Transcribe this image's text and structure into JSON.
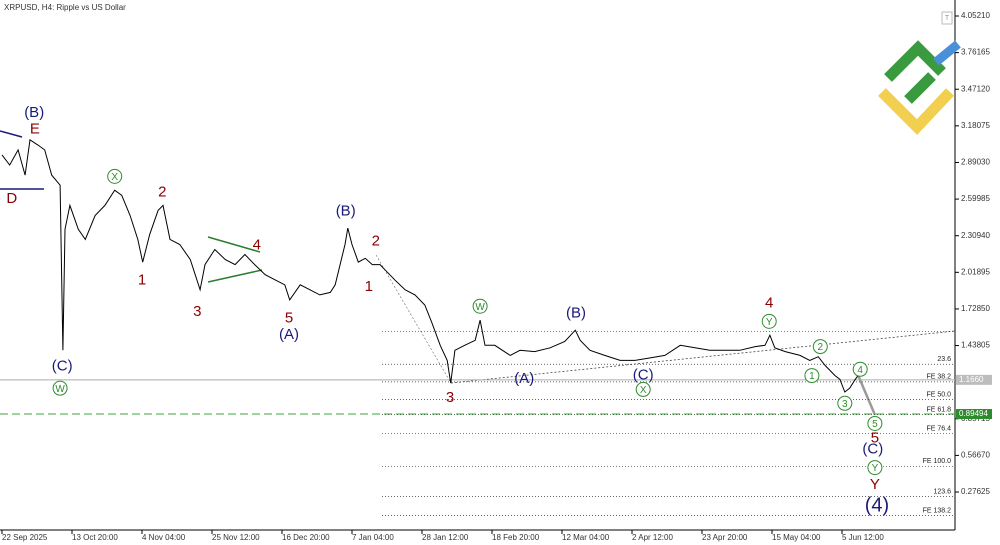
{
  "chart_data": {
    "type": "line",
    "title": "XRPUSD, H4:  Ripple vs US Dollar",
    "color": "#000000",
    "xlim": [
      0,
      13.6
    ],
    "ylim": [
      -0.025,
      4.179
    ],
    "xticks": [
      {
        "value": 0,
        "label": "22 Sep 2025"
      },
      {
        "value": 1,
        "label": "13 Oct 20:00"
      },
      {
        "value": 2,
        "label": "4 Nov 04:00"
      },
      {
        "value": 3,
        "label": "25 Nov 12:00"
      },
      {
        "value": 4,
        "label": "16 Dec 20:00"
      },
      {
        "value": 5,
        "label": "7 Jan 04:00"
      },
      {
        "value": 6,
        "label": "28 Jan 12:00"
      },
      {
        "value": 7,
        "label": "18 Feb 20:00"
      },
      {
        "value": 8,
        "label": "12 Mar 04:00"
      },
      {
        "value": 9,
        "label": "2 Apr 12:00"
      },
      {
        "value": 10,
        "label": "23 Apr 20:00"
      },
      {
        "value": 11,
        "label": "15 May 04:00"
      },
      {
        "value": 12,
        "label": "5 Jun 12:00"
      }
    ],
    "yticks": [
      {
        "value": 4.0521,
        "label": "4.05210"
      },
      {
        "value": 3.76165,
        "label": "3.76165"
      },
      {
        "value": 3.4712,
        "label": "3.47120"
      },
      {
        "value": 3.18075,
        "label": "3.18075"
      },
      {
        "value": 2.8903,
        "label": "2.89030"
      },
      {
        "value": 2.59985,
        "label": "2.59985"
      },
      {
        "value": 2.3094,
        "label": "2.30940"
      },
      {
        "value": 2.01895,
        "label": "2.01895"
      },
      {
        "value": 1.7285,
        "label": "1.72850"
      },
      {
        "value": 1.43805,
        "label": "1.43805"
      },
      {
        "value": 0.85715,
        "label": "0.85715"
      },
      {
        "value": 0.5667,
        "label": "0.56670"
      },
      {
        "value": 0.27625,
        "label": "0.27625"
      }
    ],
    "current_price": {
      "value": 1.166,
      "label": "1.1660"
    },
    "target_price": 0.89494,
    "x": [
      0,
      0.11,
      0.23,
      0.33,
      0.4,
      0.51,
      0.61,
      0.71,
      0.83,
      0.87,
      0.9,
      0.97,
      1.09,
      1.19,
      1.33,
      1.47,
      1.61,
      1.71,
      1.83,
      1.94,
      2.01,
      2.11,
      2.23,
      2.3,
      2.4,
      2.54,
      2.69,
      2.83,
      2.9,
      3.04,
      3.19,
      3.33,
      3.47,
      3.61,
      3.76,
      3.9,
      4.04,
      4.11,
      4.26,
      4.4,
      4.54,
      4.69,
      4.76,
      4.83,
      4.9,
      4.94,
      5.0,
      5.09,
      5.19,
      5.29,
      5.4,
      5.47,
      5.61,
      5.76,
      5.9,
      6.04,
      6.14,
      6.26,
      6.36,
      6.41,
      6.47,
      6.61,
      6.76,
      6.83,
      6.9,
      7.04,
      7.26,
      7.4,
      7.61,
      7.83,
      8.04,
      8.19,
      8.26,
      8.4,
      8.61,
      8.83,
      9.04,
      9.26,
      9.47,
      9.69,
      9.9,
      10.11,
      10.33,
      10.54,
      10.76,
      10.9,
      10.97,
      11.04,
      11.19,
      11.4,
      11.54,
      11.66,
      11.76,
      11.9,
      11.97,
      12.04,
      12.11,
      12.19,
      12.23
    ],
    "values": [
      2.95,
      2.87,
      2.99,
      2.79,
      3.07,
      3.03,
      2.99,
      2.79,
      2.71,
      1.4,
      2.36,
      2.55,
      2.36,
      2.28,
      2.47,
      2.55,
      2.67,
      2.63,
      2.47,
      2.28,
      2.1,
      2.32,
      2.51,
      2.55,
      2.28,
      2.24,
      2.12,
      1.88,
      2.08,
      2.2,
      2.12,
      2.08,
      2.16,
      2.08,
      2.0,
      1.96,
      1.92,
      1.8,
      1.92,
      1.88,
      1.84,
      1.86,
      1.92,
      2.08,
      2.24,
      2.37,
      2.24,
      2.1,
      2.13,
      2.08,
      2.08,
      2.04,
      1.96,
      1.88,
      1.84,
      1.76,
      1.62,
      1.44,
      1.32,
      1.14,
      1.4,
      1.44,
      1.48,
      1.64,
      1.44,
      1.44,
      1.36,
      1.4,
      1.39,
      1.42,
      1.47,
      1.56,
      1.48,
      1.4,
      1.36,
      1.32,
      1.32,
      1.34,
      1.36,
      1.44,
      1.42,
      1.4,
      1.4,
      1.4,
      1.43,
      1.44,
      1.52,
      1.42,
      1.39,
      1.36,
      1.32,
      1.35,
      1.28,
      1.2,
      1.17,
      1.07,
      1.1,
      1.17,
      1.2
    ],
    "levels": [
      {
        "value": 1.55
      },
      {
        "label": "23.6",
        "value": 1.29
      },
      {
        "label": "FE 38.2",
        "value": 1.15
      },
      {
        "label": "FE 50.0",
        "value": 1.01
      },
      {
        "label": "FE 61.8",
        "value": 0.89
      },
      {
        "label": "FE 76.4",
        "value": 0.74
      },
      {
        "label": "FE 100.0",
        "value": 0.48
      },
      {
        "label": "123.6",
        "value": 0.24
      },
      {
        "label": "FE 138.2",
        "value": 0.09
      }
    ],
    "annotations": [
      {
        "text": "(B)",
        "x": 0.46,
        "y": 3.29,
        "color": "#1a1a7a"
      },
      {
        "text": "E",
        "x": 0.47,
        "y": 3.16,
        "color": "#8b0000"
      },
      {
        "text": "D",
        "x": 0.14,
        "y": 2.61,
        "color": "#8b0000"
      },
      {
        "text": "(C)",
        "x": 0.86,
        "y": 1.28,
        "color": "#1a1a7a"
      },
      {
        "text": "W",
        "x": 0.83,
        "y": 1.1,
        "color": "#2e8b2e",
        "circled": true
      },
      {
        "text": "X",
        "x": 1.61,
        "y": 2.78,
        "color": "#2e8b2e",
        "circled": true
      },
      {
        "text": "2",
        "x": 2.29,
        "y": 2.66,
        "color": "#8b0000"
      },
      {
        "text": "1",
        "x": 2.0,
        "y": 1.96,
        "color": "#8b0000"
      },
      {
        "text": "3",
        "x": 2.79,
        "y": 1.71,
        "color": "#8b0000"
      },
      {
        "text": "4",
        "x": 3.64,
        "y": 2.24,
        "color": "#8b0000"
      },
      {
        "text": "5",
        "x": 4.1,
        "y": 1.66,
        "color": "#8b0000"
      },
      {
        "text": "(A)",
        "x": 4.1,
        "y": 1.53,
        "color": "#1a1a7a"
      },
      {
        "text": "(B)",
        "x": 4.91,
        "y": 2.51,
        "color": "#1a1a7a"
      },
      {
        "text": "2",
        "x": 5.34,
        "y": 2.27,
        "color": "#8b0000"
      },
      {
        "text": "1",
        "x": 5.24,
        "y": 1.91,
        "color": "#8b0000"
      },
      {
        "text": "3",
        "x": 6.4,
        "y": 1.03,
        "color": "#8b0000"
      },
      {
        "text": "W",
        "x": 6.83,
        "y": 1.75,
        "color": "#2e8b2e",
        "circled": true
      },
      {
        "text": "(B)",
        "x": 8.2,
        "y": 1.7,
        "color": "#1a1a7a"
      },
      {
        "text": "(A)",
        "x": 7.46,
        "y": 1.18,
        "color": "#1a1a7a"
      },
      {
        "text": "(C)",
        "x": 9.16,
        "y": 1.21,
        "color": "#1a1a7a"
      },
      {
        "text": "X",
        "x": 9.16,
        "y": 1.09,
        "color": "#2e8b2e",
        "circled": true
      },
      {
        "text": "4",
        "x": 10.96,
        "y": 1.78,
        "color": "#8b0000"
      },
      {
        "text": "Y",
        "x": 10.96,
        "y": 1.63,
        "color": "#2e8b2e",
        "circled": true
      },
      {
        "text": "2",
        "x": 11.69,
        "y": 1.43,
        "color": "#2e8b2e",
        "circled": true
      },
      {
        "text": "1",
        "x": 11.57,
        "y": 1.2,
        "color": "#2e8b2e",
        "circled": true
      },
      {
        "text": "4",
        "x": 12.26,
        "y": 1.25,
        "color": "#2e8b2e",
        "circled": true
      },
      {
        "text": "3",
        "x": 12.04,
        "y": 0.98,
        "color": "#2e8b2e",
        "circled": true
      },
      {
        "text": "5",
        "x": 12.47,
        "y": 0.82,
        "color": "#2e8b2e",
        "circled": true
      },
      {
        "text": "5",
        "x": 12.47,
        "y": 0.71,
        "color": "#8b0000"
      },
      {
        "text": "(C)",
        "x": 12.44,
        "y": 0.62,
        "color": "#1a1a7a"
      },
      {
        "text": "Y",
        "x": 12.47,
        "y": 0.47,
        "color": "#2e8b2e",
        "circled": true
      },
      {
        "text": "Y",
        "x": 12.47,
        "y": 0.34,
        "color": "#8b0000"
      },
      {
        "text": "(4)",
        "x": 12.5,
        "y": 0.17,
        "color": "#1a1a7a",
        "large": true
      }
    ]
  }
}
